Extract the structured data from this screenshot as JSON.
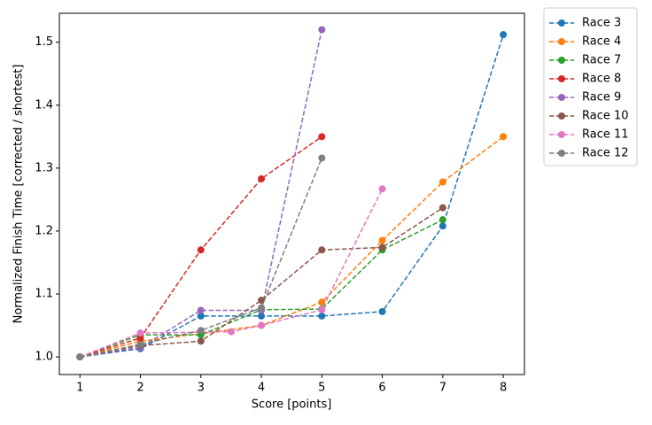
{
  "chart_data": {
    "type": "line",
    "xlabel": "Score [points]",
    "ylabel": "Normalized Finish Time [corrected / shortest]",
    "xlim": [
      0.66,
      8.35
    ],
    "ylim": [
      0.972,
      1.546
    ],
    "xticks": [
      1,
      2,
      3,
      4,
      5,
      6,
      7,
      8
    ],
    "yticks": [
      {
        "value": 1.0,
        "label": "1.0"
      },
      1.1,
      1.2,
      1.3,
      1.4,
      1.5
    ],
    "legend": "outside upper right",
    "series": [
      {
        "name": "Race 3",
        "color": "#1f77b4",
        "x": [
          1,
          2,
          3,
          4,
          5,
          6,
          7,
          8
        ],
        "values": [
          1.0,
          1.013,
          1.065,
          1.065,
          1.065,
          1.072,
          1.208,
          1.512
        ]
      },
      {
        "name": "Race 4",
        "color": "#ff7f0e",
        "x": [
          1,
          2,
          3,
          4,
          5,
          6,
          7,
          8
        ],
        "values": [
          1.0,
          1.025,
          1.037,
          1.05,
          1.087,
          1.185,
          1.278,
          1.35
        ]
      },
      {
        "name": "Race 7",
        "color": "#2ca02c",
        "x": [
          1,
          2,
          3,
          4,
          5,
          6,
          7
        ],
        "values": [
          1.0,
          1.035,
          1.035,
          1.075,
          1.076,
          1.17,
          1.218
        ]
      },
      {
        "name": "Race 8",
        "color": "#d62728",
        "x": [
          1,
          2,
          3,
          4,
          5
        ],
        "values": [
          1.0,
          1.03,
          1.17,
          1.283,
          1.35
        ]
      },
      {
        "name": "Race 9",
        "color": "#9467bd",
        "x": [
          1,
          2,
          3,
          4,
          5
        ],
        "values": [
          1.0,
          1.015,
          1.074,
          1.074,
          1.52
        ]
      },
      {
        "name": "Race 10",
        "color": "#8c564b",
        "x": [
          1,
          2,
          3,
          4,
          5,
          6,
          7
        ],
        "values": [
          1.0,
          1.018,
          1.025,
          1.09,
          1.17,
          1.174,
          1.237
        ]
      },
      {
        "name": "Race 11",
        "color": "#e377c2",
        "x": [
          1,
          2,
          3.5,
          4,
          5,
          6
        ],
        "values": [
          1.0,
          1.038,
          1.04,
          1.05,
          1.075,
          1.267
        ]
      },
      {
        "name": "Race 12",
        "color": "#7f7f7f",
        "x": [
          1,
          2,
          3,
          4,
          5
        ],
        "values": [
          1.0,
          1.02,
          1.042,
          1.078,
          1.316
        ]
      }
    ]
  }
}
